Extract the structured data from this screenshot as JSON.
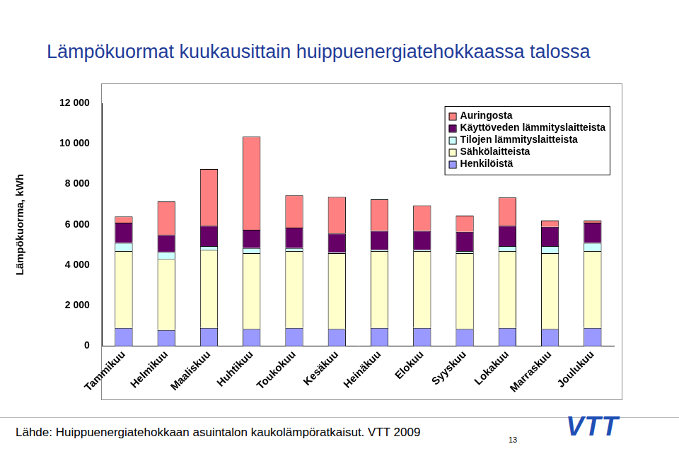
{
  "chart_data": {
    "type": "bar",
    "title": "Lämpökuormat kuukausittain huippuenergiatehokkaassa talossa",
    "y_label": "Lämpökuorma, kWh",
    "categories": [
      "Tammikuu",
      "Helmikuu",
      "Maaliskuu",
      "Huhtikuu",
      "Toukokuu",
      "Kesäkuu",
      "Heinäkuu",
      "Elokuu",
      "Syyskuu",
      "Lokakuu",
      "Marraskuu",
      "Joulukuu"
    ],
    "series": [
      {
        "name": "Henkilöistä",
        "color": "#9999ff",
        "values": [
          900,
          800,
          900,
          850,
          900,
          850,
          900,
          900,
          850,
          900,
          850,
          900
        ]
      },
      {
        "name": "Sähkölaitteista",
        "color": "#ffffcc",
        "values": [
          3800,
          3500,
          3850,
          3750,
          3800,
          3750,
          3800,
          3800,
          3750,
          3800,
          3750,
          3800
        ]
      },
      {
        "name": "Tilojen lämmityslaitteista",
        "color": "#ccffff",
        "values": [
          400,
          350,
          200,
          250,
          150,
          20,
          50,
          50,
          100,
          250,
          350,
          400
        ]
      },
      {
        "name": "Käyttöveden lämmityslaitteista",
        "color": "#660066",
        "values": [
          1000,
          850,
          1000,
          900,
          1000,
          950,
          950,
          950,
          950,
          1000,
          950,
          1000
        ]
      },
      {
        "name": "Auringosta",
        "color": "#ff8080",
        "values": [
          300,
          1650,
          2800,
          4600,
          1600,
          1800,
          1550,
          1250,
          800,
          1400,
          300,
          100
        ]
      }
    ],
    "stacked": true,
    "grid": false,
    "legend": "top-right",
    "ylim": [
      0,
      12000
    ],
    "yticks": [
      {
        "value": 0,
        "label": "0"
      },
      {
        "value": 2000,
        "label": "2 000"
      },
      {
        "value": 4000,
        "label": "4 000"
      },
      {
        "value": 6000,
        "label": "6 000"
      },
      {
        "value": 8000,
        "label": "8 000"
      },
      {
        "value": 10000,
        "label": "10 000"
      },
      {
        "value": 12000,
        "label": "12 000"
      }
    ]
  },
  "footer": {
    "source": "Lähde: Huippuenergiatehokkaan asuintalon kaukolämpöratkaisut. VTT 2009",
    "page": "13",
    "logo": "VTT"
  }
}
